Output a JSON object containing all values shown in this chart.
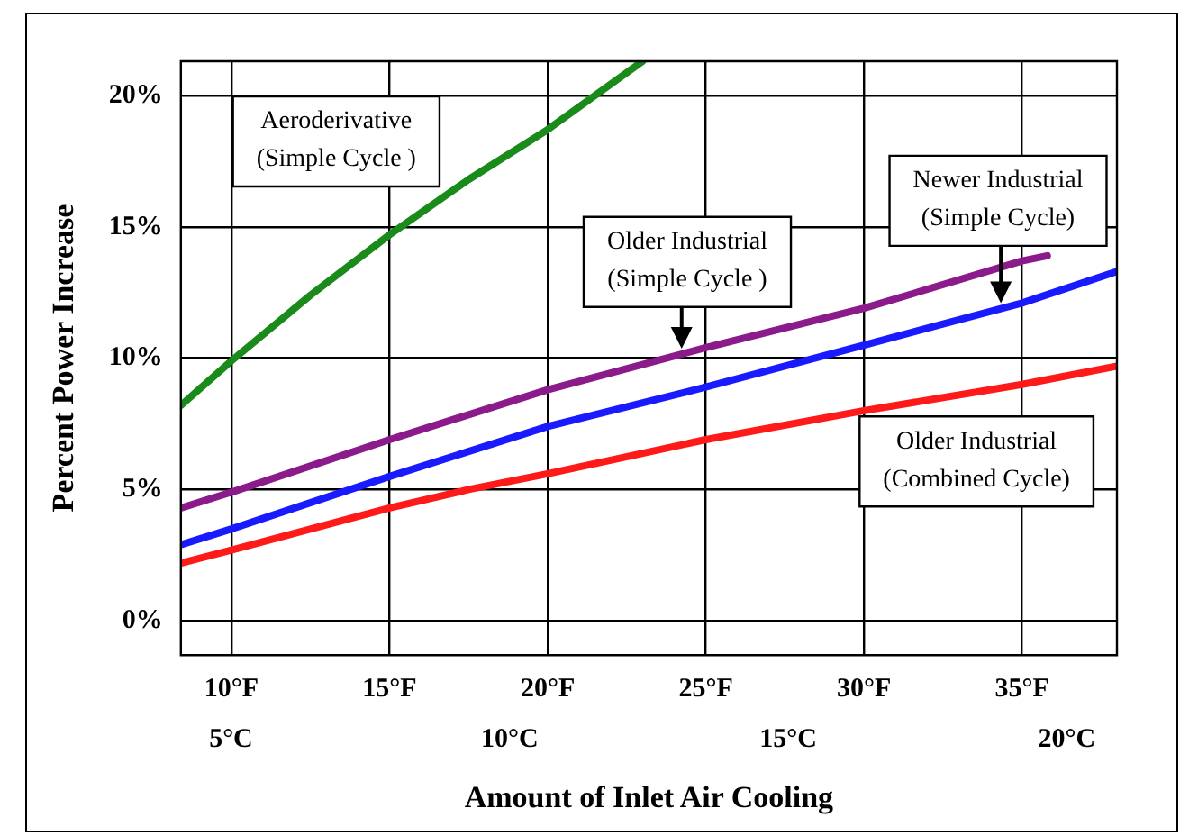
{
  "chart_data": {
    "type": "line",
    "xlabel": "Amount of Inlet Air Cooling",
    "ylabel": "Percent Power Increase",
    "xlim": [
      8.4,
      38
    ],
    "xticks": [
      {
        "value": 10,
        "label": "10°F"
      },
      {
        "value": 15,
        "label": "15°F"
      },
      {
        "value": 20,
        "label": "20°F"
      },
      {
        "value": 25,
        "label": "25°F"
      },
      {
        "value": 30,
        "label": "30°F"
      },
      {
        "value": 35,
        "label": "35°F"
      }
    ],
    "x2lim": [
      4.1,
      20.9
    ],
    "x2ticks": [
      {
        "value": 5,
        "label": "5°C"
      },
      {
        "value": 10,
        "label": "10°C"
      },
      {
        "value": 15,
        "label": "15°C"
      },
      {
        "value": 20,
        "label": "20°C"
      }
    ],
    "ylim": [
      -1.3,
      21.3
    ],
    "yticks": [
      {
        "value": 0,
        "label": "0%"
      },
      {
        "value": 5,
        "label": "5%"
      },
      {
        "value": 10,
        "label": "10%"
      },
      {
        "value": 15,
        "label": "15%"
      },
      {
        "value": 20,
        "label": "20%"
      }
    ],
    "grid": true,
    "legend": false,
    "marker": "none",
    "line_style": "solid",
    "series": [
      {
        "name": "Aeroderivative\n(Simple Cycle )",
        "color": "#1a8a1a",
        "x": [
          8.4,
          10,
          12.5,
          15,
          17.5,
          20,
          23
        ],
        "values": [
          8.2,
          9.9,
          12.4,
          14.7,
          16.8,
          18.7,
          21.3
        ]
      },
      {
        "name": "Older Industrial\n(Simple Cycle )",
        "color": "#8b1a8b",
        "x": [
          8.4,
          10,
          15,
          20,
          25,
          30,
          35,
          35.8
        ],
        "values": [
          4.3,
          4.9,
          6.9,
          8.8,
          10.4,
          11.9,
          13.7,
          13.9
        ]
      },
      {
        "name": "Newer Industrial\n(Simple Cycle)",
        "color": "#1a1aff",
        "x": [
          8.4,
          10,
          15,
          20,
          25,
          30,
          35,
          38
        ],
        "values": [
          2.9,
          3.5,
          5.5,
          7.4,
          8.9,
          10.5,
          12.1,
          13.3
        ]
      },
      {
        "name": "Older Industrial\n(Combined Cycle)",
        "color": "#ff1a1a",
        "x": [
          8.4,
          10,
          15,
          17.5,
          20,
          25,
          30,
          35,
          38
        ],
        "values": [
          2.2,
          2.7,
          4.3,
          5.0,
          5.6,
          6.9,
          8.0,
          9.0,
          9.7
        ]
      }
    ]
  }
}
